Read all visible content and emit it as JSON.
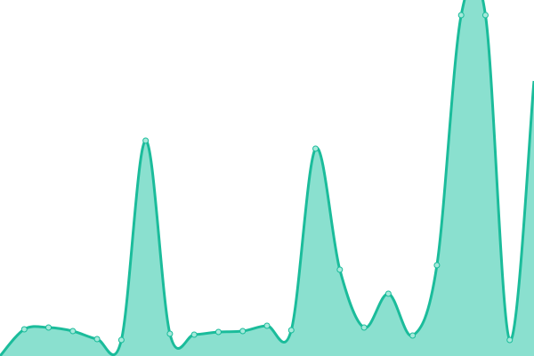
{
  "chart_data": {
    "type": "area",
    "curve": "smooth",
    "axes_visible": false,
    "grid": false,
    "ylim": [
      0,
      400
    ],
    "x": [
      0,
      1,
      2,
      3,
      4,
      5,
      6,
      7,
      8,
      9,
      10,
      11,
      12,
      13,
      14,
      15,
      16,
      17,
      18,
      19,
      20,
      21,
      22
    ],
    "values": [
      0,
      30,
      32,
      28,
      19,
      18,
      242,
      25,
      24,
      27,
      28,
      34,
      29,
      233,
      97,
      32,
      70,
      23,
      102,
      383,
      383,
      18,
      309
    ],
    "colors": {
      "line": "#1bbc9b",
      "fill": "#8ae0cf",
      "marker_fill": "#a6e9db",
      "marker_stroke": "#1bbc9b"
    }
  }
}
